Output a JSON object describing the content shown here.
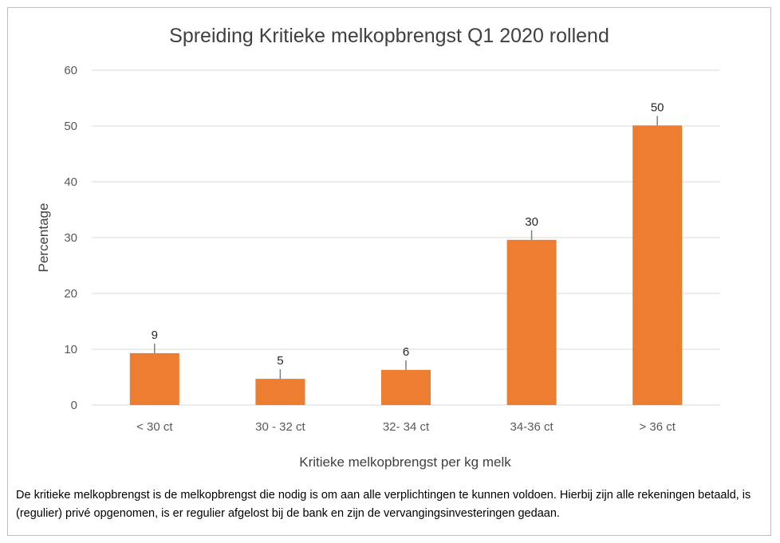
{
  "chart_data": {
    "type": "bar",
    "title": "Spreiding Kritieke melkopbrengst Q1 2020 rollend",
    "xlabel": "Kritieke melkopbrengst per kg melk",
    "ylabel": "Percentage",
    "categories": [
      "< 30 ct",
      "30 - 32 ct",
      "32- 34 ct",
      "34-36 ct",
      "> 36 ct"
    ],
    "values": [
      9.3,
      4.7,
      6.3,
      29.6,
      50.1
    ],
    "data_labels": [
      "9",
      "5",
      "6",
      "30",
      "50"
    ],
    "ylim": [
      0,
      60
    ],
    "yticks": [
      0,
      10,
      20,
      30,
      40,
      50,
      60
    ],
    "bar_color": "#ED7D31",
    "grid": true,
    "legend": "none"
  },
  "footnote": "De kritieke melkopbrengst is de melkopbrengst die nodig is om aan alle verplichtingen te kunnen voldoen. Hierbij zijn alle rekeningen betaald, is (regulier) privé opgenomen, is er regulier afgelost bij de bank en zijn de vervangingsinvesteringen gedaan."
}
